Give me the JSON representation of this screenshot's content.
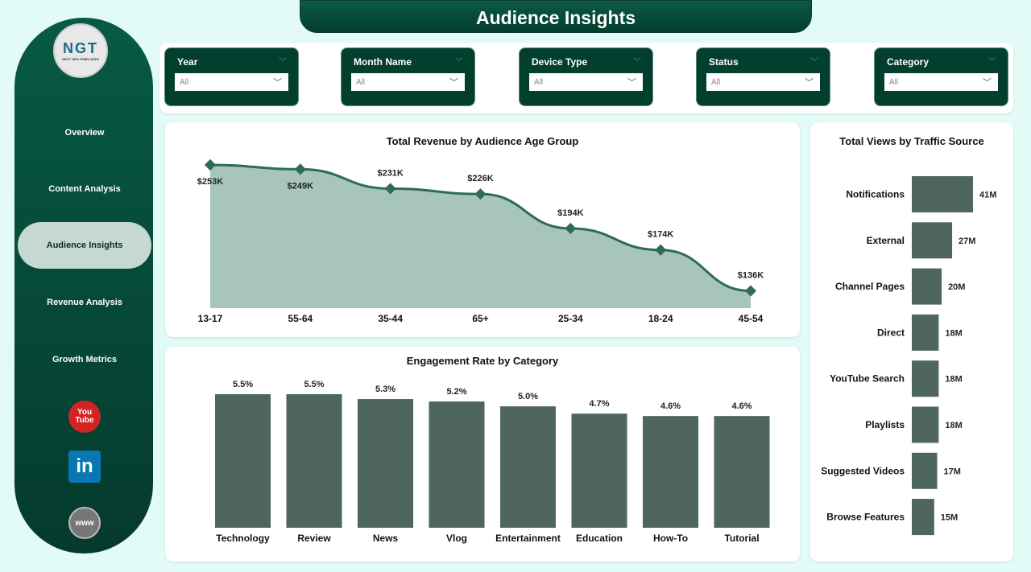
{
  "header": {
    "title": "Audience Insights"
  },
  "sidebar": {
    "logo_text": "NGT",
    "logo_subtext": "NEXT GEN TEMPLATES",
    "items": [
      {
        "label": "Overview"
      },
      {
        "label": "Content Analysis"
      },
      {
        "label": "Audience Insights",
        "active": true
      },
      {
        "label": "Revenue Analysis"
      },
      {
        "label": "Growth Metrics"
      }
    ],
    "social": [
      {
        "icon": "youtube-icon",
        "label": "You Tube",
        "color": "#d32323"
      },
      {
        "icon": "linkedin-icon",
        "label": "in",
        "color": "#0a77b5"
      },
      {
        "icon": "globe-icon",
        "label": "www",
        "color": "#777777"
      }
    ]
  },
  "filters": [
    {
      "label": "Year",
      "value": "All"
    },
    {
      "label": "Month Name",
      "value": "All"
    },
    {
      "label": "Device Type",
      "value": "All"
    },
    {
      "label": "Status",
      "value": "All"
    },
    {
      "label": "Category",
      "value": "All"
    }
  ],
  "chart_data": [
    {
      "type": "area",
      "title": "Total Revenue by Audience Age Group",
      "categories": [
        "13-17",
        "55-64",
        "35-44",
        "65+",
        "25-34",
        "18-24",
        "45-54"
      ],
      "values": [
        253000,
        249000,
        231000,
        226000,
        194000,
        174000,
        136000
      ],
      "labels": [
        "$253K",
        "$249K",
        "$231K",
        "$226K",
        "$194K",
        "$174K",
        "$136K"
      ],
      "ylim": [
        120000,
        253000
      ],
      "color": "#2e6b5a",
      "fill": "#a8c5bd"
    },
    {
      "type": "bar",
      "title": "Engagement Rate by Category",
      "categories": [
        "Technology",
        "Review",
        "News",
        "Vlog",
        "Entertainment",
        "Education",
        "How-To",
        "Tutorial"
      ],
      "values": [
        5.5,
        5.5,
        5.3,
        5.2,
        5.0,
        4.7,
        4.6,
        4.6
      ],
      "labels": [
        "5.5%",
        "5.5%",
        "5.3%",
        "5.2%",
        "5.0%",
        "4.7%",
        "4.6%",
        "4.6%"
      ],
      "ylim": [
        0,
        5.5
      ],
      "color": "#4e665f"
    },
    {
      "type": "bar",
      "orientation": "horizontal",
      "title": "Total Views by Traffic Source",
      "categories": [
        "Notifications",
        "External",
        "Channel Pages",
        "Direct",
        "YouTube Search",
        "Playlists",
        "Suggested Videos",
        "Browse Features"
      ],
      "values": [
        41,
        27,
        20,
        18,
        18,
        18,
        17,
        15
      ],
      "labels": [
        "41M",
        "27M",
        "20M",
        "18M",
        "18M",
        "18M",
        "17M",
        "15M"
      ],
      "unit": "M",
      "color": "#4e665f"
    }
  ]
}
